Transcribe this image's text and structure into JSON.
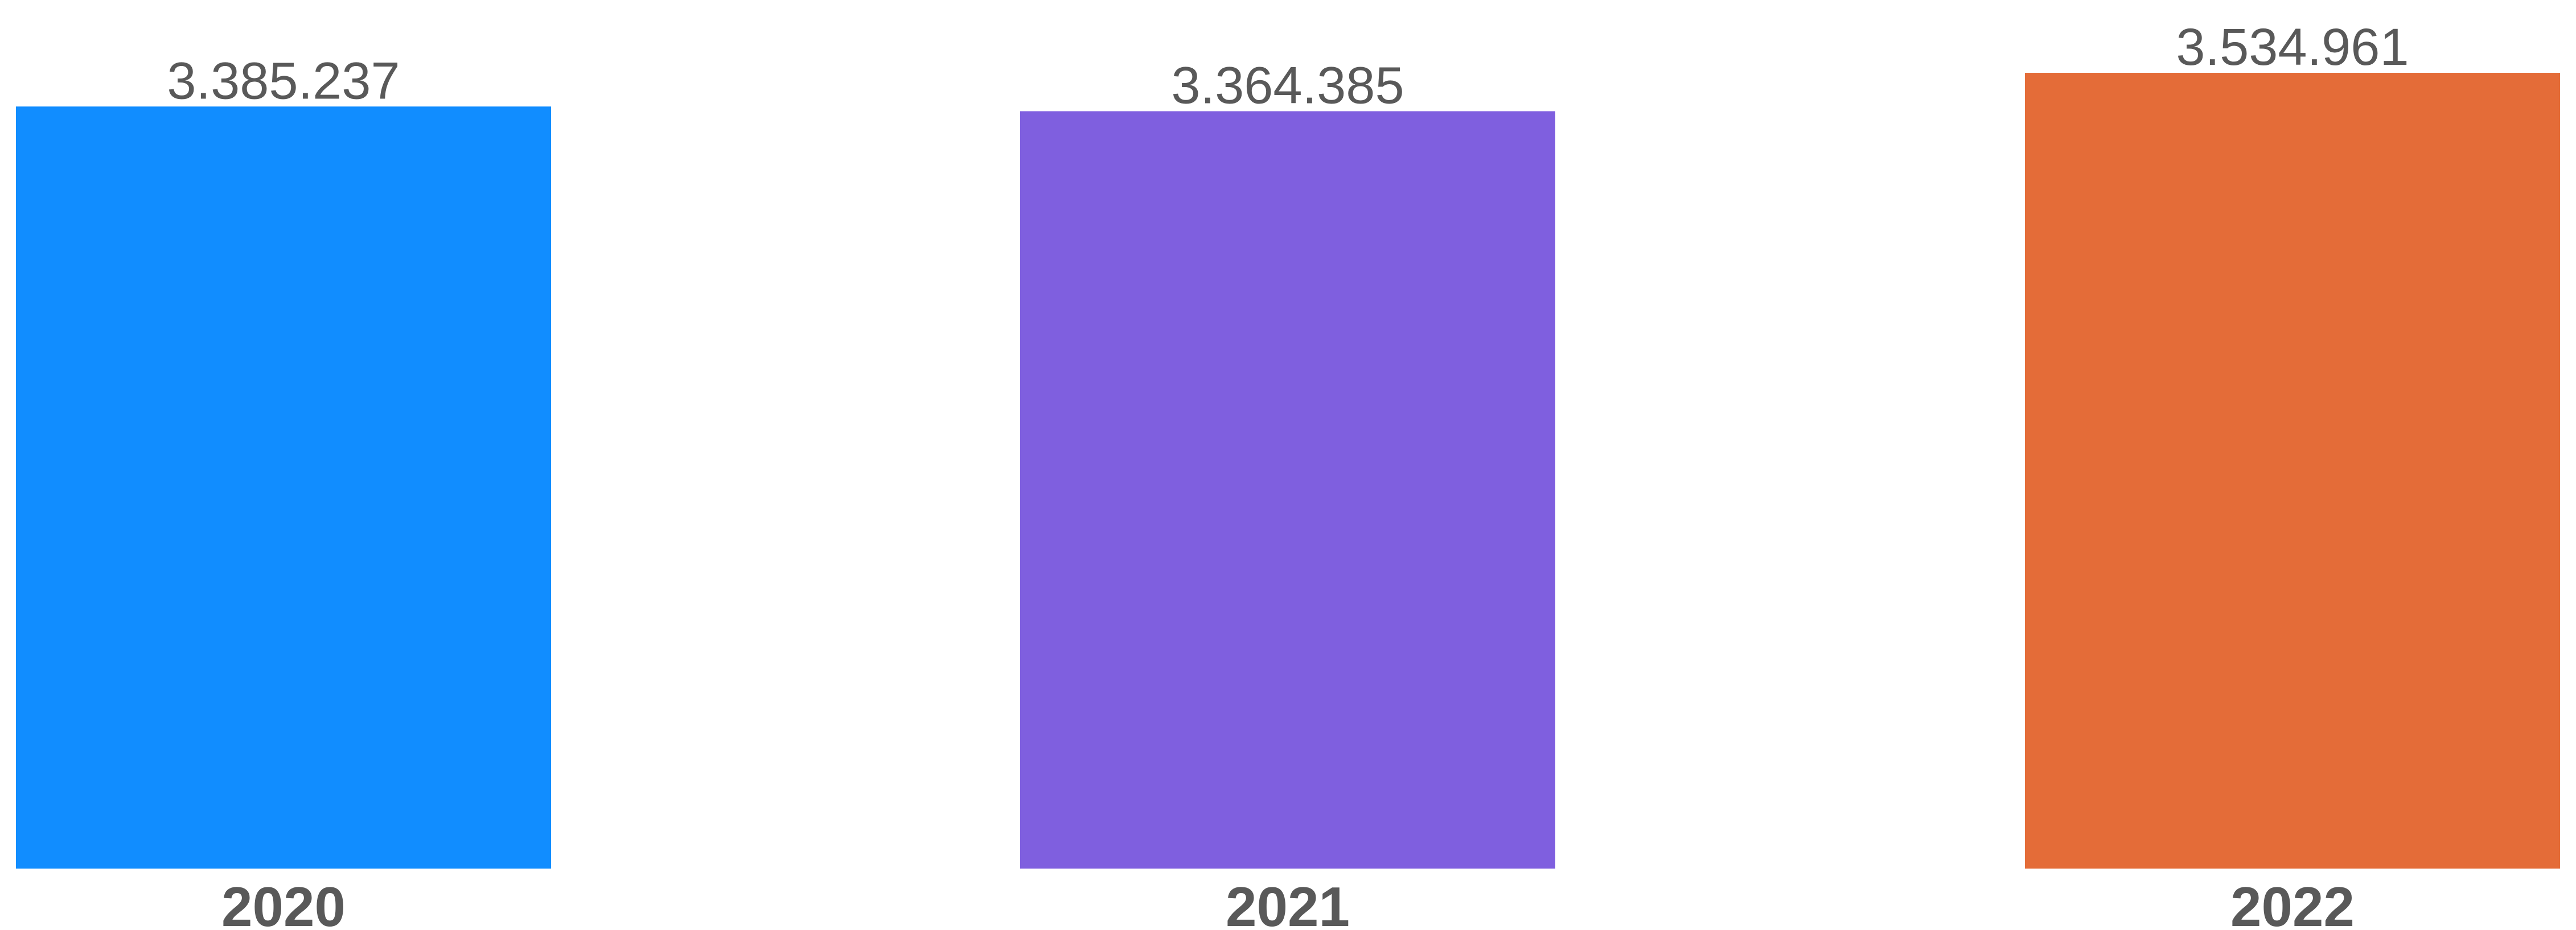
{
  "chart_data": {
    "type": "bar",
    "categories": [
      "2020",
      "2021",
      "2022"
    ],
    "values": [
      3385237,
      3364385,
      3534961
    ],
    "value_labels": [
      "3.385.237",
      "3.364.385",
      "3.534.961"
    ],
    "colors": [
      "#118DFF",
      "#7F5FDF",
      "#E46C38"
    ],
    "label_color": "#595959",
    "background": "#FFFFFF",
    "ylim": [
      0,
      3534961
    ],
    "grid": false,
    "legend": "none",
    "title": "",
    "xlabel": "",
    "ylabel": ""
  }
}
